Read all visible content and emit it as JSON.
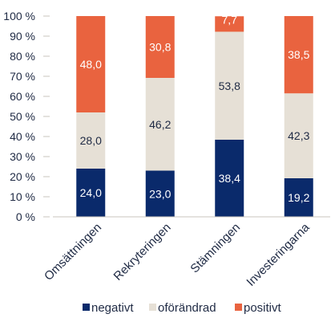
{
  "chart_data": {
    "type": "bar",
    "stacked": true,
    "title": "",
    "xlabel": "",
    "ylabel": "",
    "ylim": [
      0,
      100
    ],
    "y_tick_values": [
      0,
      10,
      20,
      30,
      40,
      50,
      60,
      70,
      80,
      90,
      100
    ],
    "y_tick_labels": [
      "0 %",
      "10 %",
      "20 %",
      "30 %",
      "40 %",
      "50 %",
      "60 %",
      "70 %",
      "80 %",
      "90 %",
      "100 %"
    ],
    "grid": false,
    "legend_position": "bottom",
    "categories": [
      "Omsättningen",
      "Rekryteringen",
      "Stämningen",
      "Investeringarna"
    ],
    "series": [
      {
        "name": "negativt",
        "color": "#0a2a6b",
        "label_color": "#ffffff",
        "values": [
          24.0,
          23.0,
          38.4,
          19.2
        ],
        "labels": [
          "24,0",
          "23,0",
          "38,4",
          "19,2"
        ]
      },
      {
        "name": "oförändrad",
        "color": "#e6e0d6",
        "label_color": "#1f2a44",
        "values": [
          28.0,
          46.2,
          53.8,
          42.3
        ],
        "labels": [
          "28,0",
          "46,2",
          "53,8",
          "42,3"
        ]
      },
      {
        "name": "positivt",
        "color": "#e9633f",
        "label_color": "#ffffff",
        "values": [
          48.0,
          30.8,
          7.7,
          38.5
        ],
        "labels": [
          "48,0",
          "30,8",
          "7,7",
          "38,5"
        ]
      }
    ]
  }
}
